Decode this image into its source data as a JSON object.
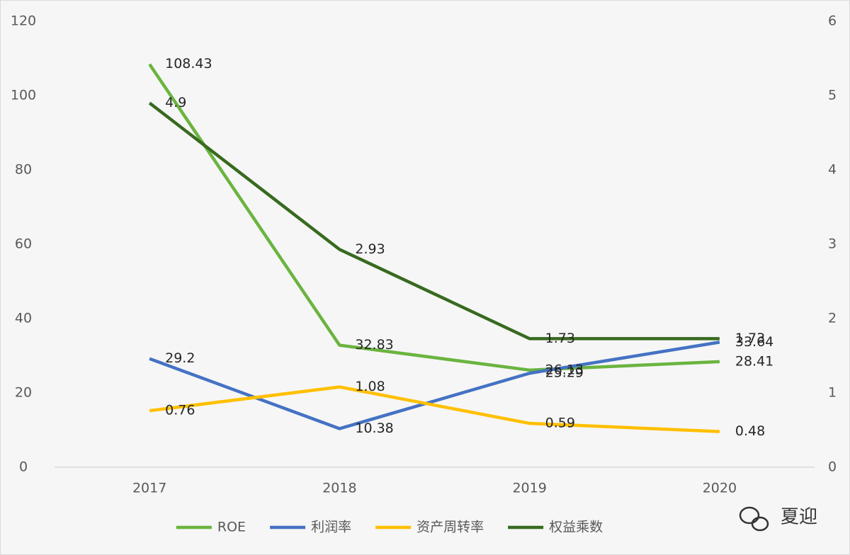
{
  "chart_data": {
    "type": "line",
    "categories": [
      "2017",
      "2018",
      "2019",
      "2020"
    ],
    "series": [
      {
        "name": "ROE",
        "color": "#6ab43f",
        "values": [
          108.43,
          32.83,
          26.13,
          28.41
        ]
      },
      {
        "name": "利润率",
        "color": "#4472c4",
        "values": [
          29.2,
          10.38,
          25.29,
          33.64
        ]
      },
      {
        "name": "资产周转率",
        "color": "#ffc000",
        "values": [
          0.76,
          1.08,
          0.59,
          0.48
        ],
        "axis": "y2"
      },
      {
        "name": "权益乘数",
        "color": "#386a1f",
        "values": [
          4.9,
          2.93,
          1.73,
          1.73
        ],
        "axis": "y2"
      }
    ],
    "ylim": [
      0,
      120
    ],
    "yticks": [
      0,
      20,
      40,
      60,
      80,
      100,
      120
    ],
    "y2lim": [
      0,
      6
    ],
    "y2ticks": [
      0,
      1,
      2,
      3,
      4,
      5,
      6
    ],
    "grid": false,
    "legend": "bottom",
    "data_labels": true,
    "watermark": "夏迎"
  }
}
